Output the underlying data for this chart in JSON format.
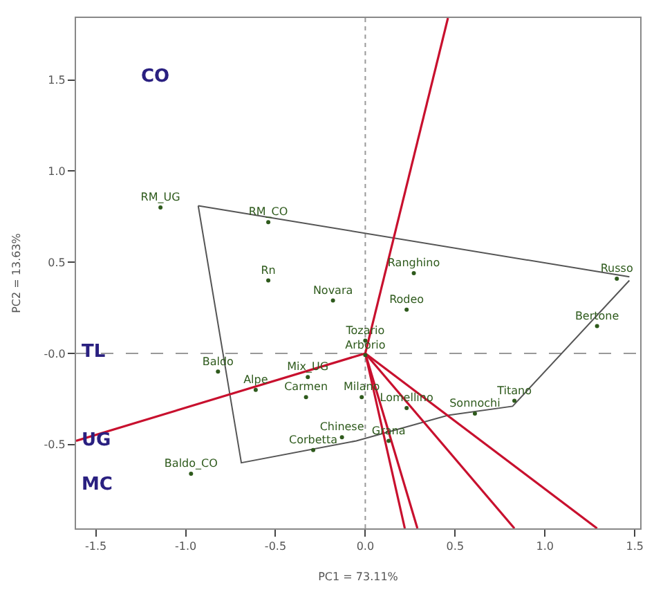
{
  "chart_data": {
    "type": "scatter",
    "xlabel": "PC1 = 73.11%",
    "ylabel": "PC2 = 13.63%",
    "xlim": [
      -1.61,
      1.53
    ],
    "ylim": [
      -0.96,
      1.84
    ],
    "xticks": [
      {
        "value": -1.5,
        "label": "-1.5"
      },
      {
        "value": -1,
        "label": "-1.0"
      },
      {
        "value": -0.5,
        "label": "-0.5"
      },
      {
        "value": 0,
        "label": "0.0"
      },
      {
        "value": 0.5,
        "label": "0.5"
      },
      {
        "value": 1,
        "label": "1.0"
      },
      {
        "value": 1.5,
        "label": "1.5"
      }
    ],
    "yticks": [
      {
        "value": -0.5,
        "label": "-0.5"
      },
      {
        "value": 0,
        "label": "-0.0"
      },
      {
        "value": 0.5,
        "label": "0.5"
      },
      {
        "value": 1,
        "label": "1.0"
      },
      {
        "value": 1.5,
        "label": "1.5"
      }
    ],
    "grid": false,
    "ref_lines": [
      {
        "axis": "x",
        "value": 0,
        "color": "#999999",
        "line_style": "dotted"
      },
      {
        "axis": "y",
        "value": 0,
        "color": "#999999",
        "line_style": "dashed"
      }
    ],
    "series": [
      {
        "marker": "circle",
        "color": "#2e5a1c",
        "x": [
          -1.14,
          -0.54,
          -0.54,
          0.27,
          -0.18,
          0.23,
          0.0,
          0.0,
          -0.82,
          -0.32,
          -0.61,
          -0.33,
          -0.02,
          0.23,
          0.61,
          0.83,
          1.29,
          1.4,
          -0.13,
          0.13,
          -0.29,
          -0.97
        ],
        "values": [
          0.8,
          0.72,
          0.4,
          0.44,
          0.29,
          0.24,
          0.07,
          -0.01,
          -0.1,
          -0.13,
          -0.2,
          -0.24,
          -0.24,
          -0.3,
          -0.33,
          -0.26,
          0.15,
          0.41,
          -0.46,
          -0.48,
          -0.53,
          -0.66
        ],
        "value_labels": [
          "RM_UG",
          "RM_CO",
          "Rn",
          "Ranghino",
          "Novara",
          "Rodeo",
          "Tozario",
          "Arborio",
          "Baldo",
          "Mix_UG",
          "Alpe",
          "Carmen",
          "Milano",
          "Lomellino",
          "Sonnochi",
          "Titano",
          "Bertone",
          "Russo",
          "Chinese",
          "Grana",
          "Corbetta",
          "Baldo_CO"
        ]
      },
      {
        "type": "line",
        "color": "#555555",
        "x": [
          -0.93,
          1.47
        ],
        "values": [
          0.81,
          0.42
        ]
      },
      {
        "type": "line",
        "color": "#555555",
        "x": [
          -0.93,
          -0.69,
          -0.05,
          0.46,
          0.82,
          1.47
        ],
        "values": [
          0.81,
          -0.6,
          -0.48,
          -0.34,
          -0.29,
          0.4
        ]
      },
      {
        "type": "line",
        "color": "#c8102e",
        "x": [
          0,
          0.46
        ],
        "values": [
          0,
          1.84
        ]
      },
      {
        "type": "line",
        "color": "#c8102e",
        "x": [
          0,
          -1.61
        ],
        "values": [
          0,
          -0.48
        ]
      },
      {
        "type": "line",
        "color": "#c8102e",
        "x": [
          0,
          0.22
        ],
        "values": [
          0,
          -0.96
        ]
      },
      {
        "type": "line",
        "color": "#c8102e",
        "x": [
          0,
          0.29
        ],
        "values": [
          0,
          -0.96
        ]
      },
      {
        "type": "line",
        "color": "#c8102e",
        "x": [
          0,
          0.83
        ],
        "values": [
          0,
          -0.96
        ]
      },
      {
        "type": "line",
        "color": "#c8102e",
        "x": [
          0,
          1.29
        ],
        "values": [
          0,
          -0.96
        ]
      }
    ],
    "annotations": [
      "CO",
      "TL",
      "UG",
      "MC"
    ]
  }
}
